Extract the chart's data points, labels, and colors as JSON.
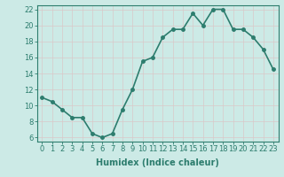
{
  "x": [
    0,
    1,
    2,
    3,
    4,
    5,
    6,
    7,
    8,
    9,
    10,
    11,
    12,
    13,
    14,
    15,
    16,
    17,
    18,
    19,
    20,
    21,
    22,
    23
  ],
  "y": [
    11.0,
    10.5,
    9.5,
    8.5,
    8.5,
    6.5,
    6.0,
    6.5,
    9.5,
    12.0,
    15.5,
    16.0,
    18.5,
    19.5,
    19.5,
    21.5,
    20.0,
    22.0,
    22.0,
    19.5,
    19.5,
    18.5,
    17.0,
    14.5
  ],
  "line_color": "#2d7d6e",
  "marker": "o",
  "marker_size": 2.5,
  "bg_color": "#cceae6",
  "grid_color": "#d9c8c8",
  "xlabel": "Humidex (Indice chaleur)",
  "ylim": [
    5.5,
    22.5
  ],
  "xlim": [
    -0.5,
    23.5
  ],
  "yticks": [
    6,
    8,
    10,
    12,
    14,
    16,
    18,
    20,
    22
  ],
  "xticks": [
    0,
    1,
    2,
    3,
    4,
    5,
    6,
    7,
    8,
    9,
    10,
    11,
    12,
    13,
    14,
    15,
    16,
    17,
    18,
    19,
    20,
    21,
    22,
    23
  ],
  "axis_color": "#2d7d6e",
  "tick_label_color": "#2d7d6e",
  "xlabel_color": "#2d7d6e",
  "xlabel_fontsize": 7,
  "tick_fontsize": 6,
  "line_width": 1.2
}
